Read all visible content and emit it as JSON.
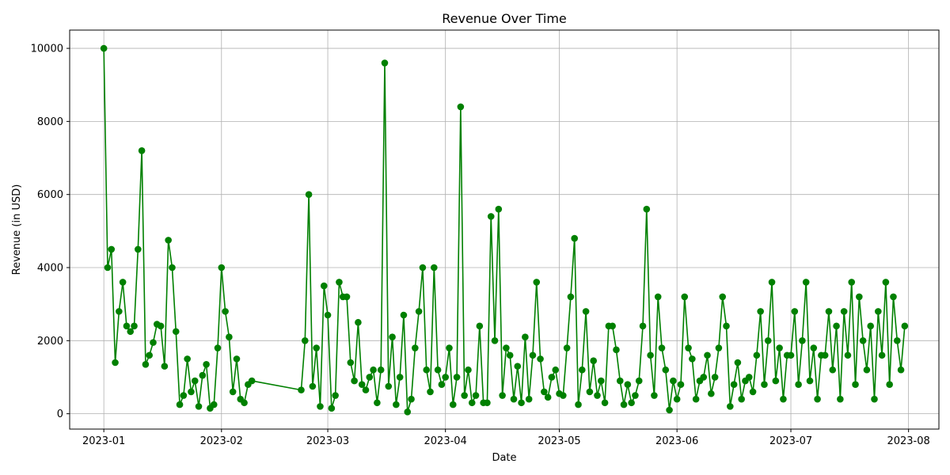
{
  "chart_data": {
    "type": "line",
    "title": "Revenue Over Time",
    "xlabel": "Date",
    "ylabel": "Revenue (in USD)",
    "xlim": [
      "2022-12-23",
      "2023-08-09"
    ],
    "ylim": [
      -420,
      10500
    ],
    "x_ticks": [
      "2023-01-01",
      "2023-02-01",
      "2023-03-01",
      "2023-04-01",
      "2023-05-01",
      "2023-06-01",
      "2023-07-01",
      "2023-08-01"
    ],
    "x_tick_labels": [
      "2023-01",
      "2023-02",
      "2023-03",
      "2023-04",
      "2023-05",
      "2023-06",
      "2023-07",
      "2023-08"
    ],
    "y_ticks": [
      0,
      2000,
      4000,
      6000,
      8000,
      10000
    ],
    "y_tick_labels": [
      "0",
      "2000",
      "4000",
      "6000",
      "8000",
      "10000"
    ],
    "grid": true,
    "color": "#008000",
    "marker": "circle",
    "series": [
      {
        "points": [
          [
            "2023-01-01",
            10000
          ],
          [
            "2023-01-02",
            4000
          ],
          [
            "2023-01-03",
            4500
          ],
          [
            "2023-01-04",
            1400
          ],
          [
            "2023-01-05",
            2800
          ],
          [
            "2023-01-06",
            3600
          ],
          [
            "2023-01-07",
            2400
          ],
          [
            "2023-01-08",
            2250
          ],
          [
            "2023-01-09",
            2400
          ],
          [
            "2023-01-10",
            4500
          ],
          [
            "2023-01-11",
            7200
          ],
          [
            "2023-01-12",
            1350
          ],
          [
            "2023-01-13",
            1600
          ],
          [
            "2023-01-14",
            1950
          ],
          [
            "2023-01-15",
            2450
          ],
          [
            "2023-01-16",
            2400
          ],
          [
            "2023-01-17",
            1300
          ],
          [
            "2023-01-18",
            4750
          ],
          [
            "2023-01-19",
            4000
          ],
          [
            "2023-01-20",
            2250
          ],
          [
            "2023-01-21",
            250
          ],
          [
            "2023-01-22",
            500
          ],
          [
            "2023-01-23",
            1500
          ],
          [
            "2023-01-24",
            600
          ],
          [
            "2023-01-25",
            900
          ],
          [
            "2023-01-26",
            200
          ],
          [
            "2023-01-27",
            1050
          ],
          [
            "2023-01-28",
            1350
          ],
          [
            "2023-01-29",
            150
          ],
          [
            "2023-01-30",
            250
          ],
          [
            "2023-01-31",
            1800
          ],
          [
            "2023-02-01",
            4000
          ],
          [
            "2023-02-02",
            2800
          ],
          [
            "2023-02-03",
            2100
          ],
          [
            "2023-02-04",
            600
          ],
          [
            "2023-02-05",
            1500
          ],
          [
            "2023-02-06",
            400
          ],
          [
            "2023-02-07",
            300
          ],
          [
            "2023-02-08",
            800
          ],
          [
            "2023-02-09",
            900
          ],
          [
            "2023-02-22",
            650
          ],
          [
            "2023-02-23",
            2000
          ],
          [
            "2023-02-24",
            6000
          ],
          [
            "2023-02-25",
            750
          ],
          [
            "2023-02-26",
            1800
          ],
          [
            "2023-02-27",
            200
          ],
          [
            "2023-02-28",
            3500
          ],
          [
            "2023-03-01",
            2700
          ],
          [
            "2023-03-02",
            150
          ],
          [
            "2023-03-03",
            500
          ],
          [
            "2023-03-04",
            3600
          ],
          [
            "2023-03-05",
            3200
          ],
          [
            "2023-03-06",
            3200
          ],
          [
            "2023-03-07",
            1400
          ],
          [
            "2023-03-08",
            900
          ],
          [
            "2023-03-09",
            2500
          ],
          [
            "2023-03-10",
            800
          ],
          [
            "2023-03-11",
            650
          ],
          [
            "2023-03-12",
            1000
          ],
          [
            "2023-03-13",
            1200
          ],
          [
            "2023-03-14",
            300
          ],
          [
            "2023-03-15",
            1200
          ],
          [
            "2023-03-16",
            9600
          ],
          [
            "2023-03-17",
            750
          ],
          [
            "2023-03-18",
            2100
          ],
          [
            "2023-03-19",
            250
          ],
          [
            "2023-03-20",
            1000
          ],
          [
            "2023-03-21",
            2700
          ],
          [
            "2023-03-22",
            50
          ],
          [
            "2023-03-23",
            400
          ],
          [
            "2023-03-24",
            1800
          ],
          [
            "2023-03-25",
            2800
          ],
          [
            "2023-03-26",
            4000
          ],
          [
            "2023-03-27",
            1200
          ],
          [
            "2023-03-28",
            600
          ],
          [
            "2023-03-29",
            4000
          ],
          [
            "2023-03-30",
            1200
          ],
          [
            "2023-03-31",
            800
          ],
          [
            "2023-04-01",
            1000
          ],
          [
            "2023-04-02",
            1800
          ],
          [
            "2023-04-03",
            250
          ],
          [
            "2023-04-04",
            1000
          ],
          [
            "2023-04-05",
            8400
          ],
          [
            "2023-04-06",
            500
          ],
          [
            "2023-04-07",
            1200
          ],
          [
            "2023-04-08",
            300
          ],
          [
            "2023-04-09",
            500
          ],
          [
            "2023-04-10",
            2400
          ],
          [
            "2023-04-11",
            300
          ],
          [
            "2023-04-12",
            300
          ],
          [
            "2023-04-13",
            5400
          ],
          [
            "2023-04-14",
            2000
          ],
          [
            "2023-04-15",
            5600
          ],
          [
            "2023-04-16",
            500
          ],
          [
            "2023-04-17",
            1800
          ],
          [
            "2023-04-18",
            1600
          ],
          [
            "2023-04-19",
            400
          ],
          [
            "2023-04-20",
            1300
          ],
          [
            "2023-04-21",
            300
          ],
          [
            "2023-04-22",
            2100
          ],
          [
            "2023-04-23",
            400
          ],
          [
            "2023-04-24",
            1600
          ],
          [
            "2023-04-25",
            3600
          ],
          [
            "2023-04-26",
            1500
          ],
          [
            "2023-04-27",
            600
          ],
          [
            "2023-04-28",
            450
          ],
          [
            "2023-04-29",
            1000
          ],
          [
            "2023-04-30",
            1200
          ],
          [
            "2023-05-01",
            550
          ],
          [
            "2023-05-02",
            500
          ],
          [
            "2023-05-03",
            1800
          ],
          [
            "2023-05-04",
            3200
          ],
          [
            "2023-05-05",
            4800
          ],
          [
            "2023-05-06",
            250
          ],
          [
            "2023-05-07",
            1200
          ],
          [
            "2023-05-08",
            2800
          ],
          [
            "2023-05-09",
            600
          ],
          [
            "2023-05-10",
            1450
          ],
          [
            "2023-05-11",
            500
          ],
          [
            "2023-05-12",
            900
          ],
          [
            "2023-05-13",
            300
          ],
          [
            "2023-05-14",
            2400
          ],
          [
            "2023-05-15",
            2400
          ],
          [
            "2023-05-16",
            1750
          ],
          [
            "2023-05-17",
            900
          ],
          [
            "2023-05-18",
            250
          ],
          [
            "2023-05-19",
            800
          ],
          [
            "2023-05-20",
            300
          ],
          [
            "2023-05-21",
            500
          ],
          [
            "2023-05-22",
            900
          ],
          [
            "2023-05-23",
            2400
          ],
          [
            "2023-05-24",
            5600
          ],
          [
            "2023-05-25",
            1600
          ],
          [
            "2023-05-26",
            500
          ],
          [
            "2023-05-27",
            3200
          ],
          [
            "2023-05-28",
            1800
          ],
          [
            "2023-05-29",
            1200
          ],
          [
            "2023-05-30",
            100
          ],
          [
            "2023-05-31",
            900
          ],
          [
            "2023-06-01",
            400
          ],
          [
            "2023-06-02",
            800
          ],
          [
            "2023-06-03",
            3200
          ],
          [
            "2023-06-04",
            1800
          ],
          [
            "2023-06-05",
            1500
          ],
          [
            "2023-06-06",
            400
          ],
          [
            "2023-06-07",
            900
          ],
          [
            "2023-06-08",
            1000
          ],
          [
            "2023-06-09",
            1600
          ],
          [
            "2023-06-10",
            550
          ],
          [
            "2023-06-11",
            1000
          ],
          [
            "2023-06-12",
            1800
          ],
          [
            "2023-06-13",
            3200
          ],
          [
            "2023-06-14",
            2400
          ],
          [
            "2023-06-15",
            200
          ],
          [
            "2023-06-16",
            800
          ],
          [
            "2023-06-17",
            1400
          ],
          [
            "2023-06-18",
            400
          ],
          [
            "2023-06-19",
            900
          ],
          [
            "2023-06-20",
            1000
          ],
          [
            "2023-06-21",
            600
          ],
          [
            "2023-06-22",
            1600
          ],
          [
            "2023-06-23",
            2800
          ],
          [
            "2023-06-24",
            800
          ],
          [
            "2023-06-25",
            2000
          ],
          [
            "2023-06-26",
            3600
          ],
          [
            "2023-06-27",
            900
          ],
          [
            "2023-06-28",
            1800
          ],
          [
            "2023-06-29",
            400
          ],
          [
            "2023-06-30",
            1600
          ],
          [
            "2023-07-01",
            1600
          ],
          [
            "2023-07-02",
            2800
          ],
          [
            "2023-07-03",
            800
          ],
          [
            "2023-07-04",
            2000
          ],
          [
            "2023-07-05",
            3600
          ],
          [
            "2023-07-06",
            900
          ],
          [
            "2023-07-07",
            1800
          ],
          [
            "2023-07-08",
            400
          ],
          [
            "2023-07-09",
            1600
          ],
          [
            "2023-07-10",
            1600
          ],
          [
            "2023-07-11",
            2800
          ],
          [
            "2023-07-12",
            1200
          ],
          [
            "2023-07-13",
            2400
          ],
          [
            "2023-07-14",
            400
          ],
          [
            "2023-07-15",
            2800
          ],
          [
            "2023-07-16",
            1600
          ],
          [
            "2023-07-17",
            3600
          ],
          [
            "2023-07-18",
            800
          ],
          [
            "2023-07-19",
            3200
          ],
          [
            "2023-07-20",
            2000
          ],
          [
            "2023-07-21",
            1200
          ],
          [
            "2023-07-22",
            2400
          ],
          [
            "2023-07-23",
            400
          ],
          [
            "2023-07-24",
            2800
          ],
          [
            "2023-07-25",
            1600
          ],
          [
            "2023-07-26",
            3600
          ],
          [
            "2023-07-27",
            800
          ],
          [
            "2023-07-28",
            3200
          ],
          [
            "2023-07-29",
            2000
          ],
          [
            "2023-07-30",
            1200
          ],
          [
            "2023-07-31",
            2400
          ]
        ]
      }
    ]
  }
}
